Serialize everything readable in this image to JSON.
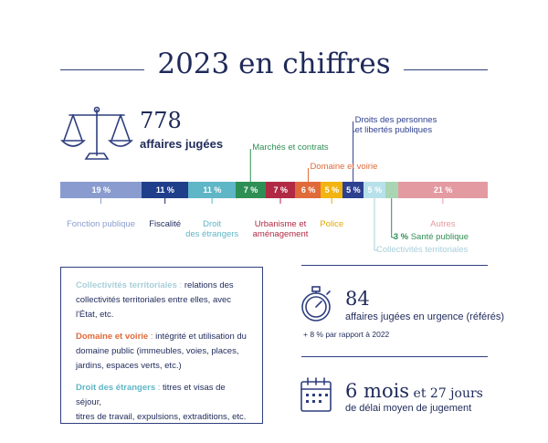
{
  "title": "2023 en chiffres",
  "jugees": {
    "number": "778",
    "label": "affaires jugées"
  },
  "chart_data": {
    "type": "bar",
    "orientation": "stacked-horizontal",
    "categories": [
      "Fonction publique",
      "Fiscalité",
      "Droit des étrangers",
      "Marchés et contrats",
      "Urbanisme et aménagement",
      "Domaine et voirie",
      "Police",
      "Droits des personnes et libertés publiques",
      "Collectivités territoriales",
      "Santé publique",
      "Autres"
    ],
    "values": [
      19,
      11,
      11,
      7,
      7,
      6,
      5,
      5,
      5,
      3,
      21
    ],
    "value_labels": [
      "19 %",
      "11 %",
      "11 %",
      "7 %",
      "7 %",
      "6 %",
      "5 %",
      "5 %",
      "5 %",
      "",
      "21 %"
    ],
    "colors": [
      "#8a9ccf",
      "#1f3f8a",
      "#5fb6c6",
      "#2e8f55",
      "#b02a44",
      "#e06a3a",
      "#f1b410",
      "#2d3f8f",
      "#b7e1ea",
      "#a9d5b3",
      "#e39aa1"
    ],
    "label_colors": [
      "#8a9ccf",
      "#1f2a5a",
      "#5fb6c6",
      "#2e8f55",
      "#b02a44",
      "#e06a3a",
      "#e3a90a",
      "#2d3f8f",
      "#a8cfd9",
      "#2e8f55",
      "#e39aa1"
    ],
    "label_texts": [
      "Fonction publique",
      "Fiscalité",
      "Droit\ndes étrangers",
      "Marchés et contrats",
      "Urbanisme et\naménagement",
      "Domaine et voirie",
      "Police",
      "Droits des personnes\net libertés publiques",
      "Collectivités territoriales",
      "Santé publique",
      "Autres"
    ],
    "sante_prefix": "3 %"
  },
  "definitions": [
    {
      "term": "Collectivités territoriales",
      "sep": " : ",
      "lines": [
        "relations des",
        "collectivités territoriales entre elles, avec",
        "l'État, etc."
      ],
      "color": "#a8cfd9"
    },
    {
      "term": "Domaine et voirie",
      "sep": " : ",
      "lines": [
        "intégrité et utilisation du",
        "domaine public (immeubles, voies, places,",
        "jardins, espaces verts, etc.)"
      ],
      "color": "#e06a3a"
    },
    {
      "term": "Droit des étrangers",
      "sep": " : ",
      "lines": [
        "titres et visas de séjour,",
        "titres de travail, expulsions, extraditions, etc."
      ],
      "color": "#5fb6c6"
    }
  ],
  "urgence": {
    "number": "84",
    "label": "affaires jugées en urgence (référés)",
    "trend": "+ 8 % par rapport à 2022"
  },
  "delai": {
    "number": "6 mois",
    "suffix": "et 27 jours",
    "label": "de délai moyen de jugement"
  },
  "icons": [
    "scales-icon",
    "stopwatch-icon",
    "calendar-icon",
    "plus-icon"
  ]
}
